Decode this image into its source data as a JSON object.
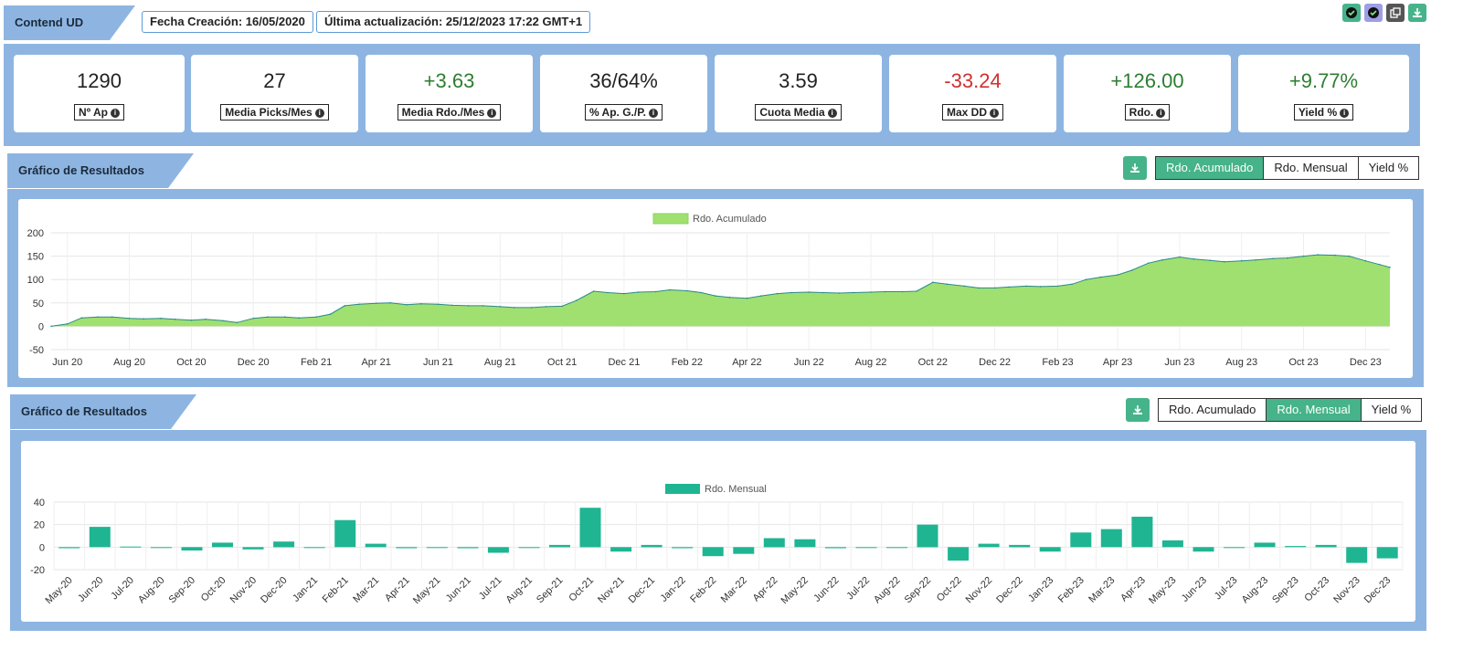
{
  "header": {
    "title": "Contend UD",
    "fecha_creacion": "Fecha Creación: 16/05/2020",
    "ultima_actualizacion": "Última actualización: 25/12/2023 17:22 GMT+1",
    "icons": [
      "check-badge-icon",
      "check-badge-icon",
      "copy-icon",
      "download-icon"
    ]
  },
  "stats": [
    {
      "value": "1290",
      "label": "Nº Ap",
      "color": "#222222"
    },
    {
      "value": "27",
      "label": "Media Picks/Mes",
      "color": "#222222"
    },
    {
      "value": "+3.63",
      "label": "Media Rdo./Mes",
      "color": "#2e7d32"
    },
    {
      "value": "36/64%",
      "label": "% Ap. G./P.",
      "color": "#222222"
    },
    {
      "value": "3.59",
      "label": "Cuota Media",
      "color": "#222222"
    },
    {
      "value": "-33.24",
      "label": "Max DD",
      "color": "#d32f2f"
    },
    {
      "value": "+126.00",
      "label": "Rdo.",
      "color": "#2e7d32"
    },
    {
      "value": "+9.77%",
      "label": "Yield %",
      "color": "#2e7d32"
    }
  ],
  "section1": {
    "title": "Gráfico de Resultados",
    "buttons": [
      "Rdo. Acumulado",
      "Rdo. Mensual",
      "Yield %"
    ],
    "active": 0
  },
  "section2": {
    "title": "Gráfico de Resultados",
    "buttons": [
      "Rdo. Acumulado",
      "Rdo. Mensual",
      "Yield %"
    ],
    "active": 1
  },
  "colors": {
    "panel": "#8eb5e2",
    "accent": "#46b38a",
    "area_fill": "#a0e070",
    "area_line": "#2a8a8a",
    "bar": "#1fb592"
  },
  "chart_data": [
    {
      "type": "area",
      "legend": "Rdo. Acumulado",
      "legend_position": "top-center",
      "ylim": [
        -50,
        200
      ],
      "yticks": [
        -50,
        0,
        50,
        100,
        150,
        200
      ],
      "xticks": [
        "Jun 20",
        "Aug 20",
        "Oct 20",
        "Dec 20",
        "Feb 21",
        "Apr 21",
        "Jun 21",
        "Aug 21",
        "Oct 21",
        "Dec 21",
        "Feb 22",
        "Apr 22",
        "Jun 22",
        "Aug 22",
        "Oct 22",
        "Dec 22",
        "Feb 23",
        "Apr 23",
        "Jun 23",
        "Aug 23",
        "Oct 23",
        "Dec 23"
      ],
      "x": [
        "2020-05-16",
        "2020-06-01",
        "2020-06-15",
        "2020-07-01",
        "2020-07-15",
        "2020-08-01",
        "2020-08-15",
        "2020-09-01",
        "2020-09-15",
        "2020-10-01",
        "2020-10-15",
        "2020-11-01",
        "2020-11-15",
        "2020-12-01",
        "2020-12-15",
        "2021-01-01",
        "2021-01-15",
        "2021-02-01",
        "2021-02-15",
        "2021-03-01",
        "2021-03-15",
        "2021-04-01",
        "2021-04-15",
        "2021-05-01",
        "2021-05-15",
        "2021-06-01",
        "2021-06-15",
        "2021-07-01",
        "2021-07-15",
        "2021-08-01",
        "2021-08-15",
        "2021-09-01",
        "2021-09-15",
        "2021-10-01",
        "2021-10-15",
        "2021-11-01",
        "2021-11-15",
        "2021-12-01",
        "2021-12-15",
        "2022-01-01",
        "2022-01-15",
        "2022-02-01",
        "2022-02-15",
        "2022-03-01",
        "2022-03-15",
        "2022-04-01",
        "2022-04-15",
        "2022-05-01",
        "2022-05-15",
        "2022-06-01",
        "2022-06-15",
        "2022-07-01",
        "2022-07-15",
        "2022-08-01",
        "2022-08-15",
        "2022-09-01",
        "2022-09-15",
        "2022-10-01",
        "2022-10-15",
        "2022-11-01",
        "2022-11-15",
        "2022-12-01",
        "2022-12-15",
        "2023-01-01",
        "2023-01-15",
        "2023-02-01",
        "2023-02-15",
        "2023-03-01",
        "2023-03-15",
        "2023-04-01",
        "2023-04-15",
        "2023-05-01",
        "2023-05-15",
        "2023-06-01",
        "2023-06-15",
        "2023-07-01",
        "2023-07-15",
        "2023-08-01",
        "2023-08-15",
        "2023-09-01",
        "2023-09-15",
        "2023-10-01",
        "2023-10-15",
        "2023-11-01",
        "2023-11-15",
        "2023-12-01",
        "2023-12-15",
        "2023-12-25"
      ],
      "y": [
        0,
        5,
        18,
        20,
        20,
        17,
        16,
        17,
        15,
        13,
        15,
        12,
        8,
        17,
        20,
        20,
        18,
        20,
        26,
        44,
        47,
        49,
        50,
        46,
        48,
        47,
        45,
        44,
        44,
        42,
        40,
        40,
        42,
        43,
        55,
        75,
        72,
        70,
        73,
        74,
        78,
        76,
        72,
        65,
        62,
        60,
        65,
        70,
        72,
        73,
        72,
        71,
        72,
        73,
        74,
        74,
        75,
        94,
        90,
        86,
        82,
        82,
        84,
        86,
        85,
        86,
        90,
        100,
        105,
        110,
        120,
        135,
        142,
        148,
        144,
        141,
        138,
        140,
        142,
        145,
        146,
        150,
        153,
        152,
        150,
        140,
        132,
        126
      ]
    },
    {
      "type": "bar",
      "legend": "Rdo. Mensual",
      "legend_position": "top-center",
      "ylim": [
        -20,
        40
      ],
      "yticks": [
        -20,
        0,
        20,
        40
      ],
      "categories": [
        "May-20",
        "Jun-20",
        "Jul-20",
        "Aug-20",
        "Sep-20",
        "Oct-20",
        "Nov-20",
        "Dec-20",
        "Jan-21",
        "Feb-21",
        "Mar-21",
        "Apr-21",
        "May-21",
        "Jun-21",
        "Jul-21",
        "Aug-21",
        "Sep-21",
        "Oct-21",
        "Nov-21",
        "Dec-21",
        "Jan-22",
        "Feb-22",
        "Mar-22",
        "Apr-22",
        "May-22",
        "Jun-22",
        "Jul-22",
        "Aug-22",
        "Sep-22",
        "Oct-22",
        "Nov-22",
        "Dec-22",
        "Jan-23",
        "Feb-23",
        "Mar-23",
        "Apr-23",
        "May-23",
        "Jun-23",
        "Jul-23",
        "Aug-23",
        "Sep-23",
        "Oct-23",
        "Nov-23",
        "Dec-23"
      ],
      "values": [
        -1,
        18,
        0.5,
        0,
        -3,
        4,
        -2,
        5,
        0,
        24,
        3,
        -1,
        0,
        -1,
        -5,
        0,
        2,
        35,
        -4,
        2,
        -1,
        -8,
        -6,
        8,
        7,
        -1,
        0,
        0,
        20,
        -12,
        3,
        2,
        -4,
        13,
        16,
        27,
        6,
        -4,
        0,
        4,
        1,
        2,
        -14,
        -10
      ]
    }
  ]
}
